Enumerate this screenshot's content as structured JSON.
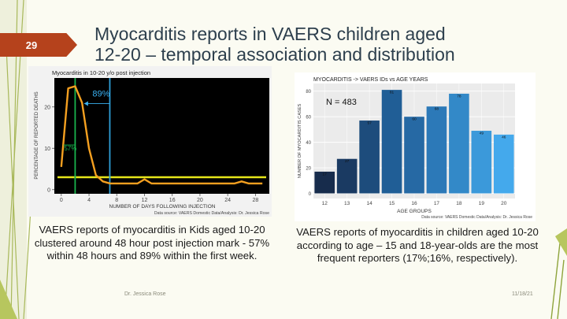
{
  "slide": {
    "number": "29",
    "title_lines": [
      "Myocarditis reports in VAERS children aged",
      "12-20 – temporal association and distribution"
    ],
    "caption_left": "VAERS reports of myocarditis in Kids aged 10-20 clustered around 48 hour post injection mark - 57% within 48 hours and 89% within the first week.",
    "caption_right": "VAERS reports of myocarditis in children aged 10-20 according to age – 15 and 18-year-olds are the most frequent reporters (17%;16%, respectively).",
    "footer_author": "Dr. Jessica Rose",
    "footer_date": "11/18/21",
    "accent_color": "#b5421c"
  },
  "chart_data": [
    {
      "type": "line",
      "title": "Myocarditis in 10-20 y/o post injection",
      "xlabel": "NUMBER OF DAYS FOLLOWING INJECTION",
      "ylabel": "PERCENTAGE OF REPORTED DEATHS",
      "source": "Data source: VAERS Domestic Data/Analysis: Dr. Jessica Rose",
      "xlim": [
        -1,
        30
      ],
      "ylim": [
        -1,
        27
      ],
      "x_ticks": [
        0,
        4,
        8,
        12,
        16,
        20,
        24,
        28
      ],
      "y_ticks": [
        0,
        10,
        20
      ],
      "grid": false,
      "background": "#000000",
      "series": [
        {
          "color": "#f5a020",
          "x": [
            0,
            1,
            2,
            3,
            4,
            5,
            6,
            7,
            8,
            9,
            10,
            11,
            12,
            13,
            14,
            15,
            16,
            17,
            18,
            19,
            20,
            21,
            22,
            23,
            24,
            25,
            26,
            27,
            28,
            29
          ],
          "y": [
            5.5,
            24.5,
            25,
            21,
            10,
            3.5,
            2,
            1.5,
            1.5,
            1.5,
            1.5,
            1.5,
            2.5,
            1.5,
            1.5,
            1.5,
            1.5,
            1.5,
            1.5,
            1.5,
            1.5,
            1.5,
            1.5,
            1.5,
            1.5,
            1.5,
            2,
            1.5,
            1.5,
            1.5
          ]
        }
      ],
      "hlines": [
        {
          "y": 3,
          "color": "#e6e61a"
        }
      ],
      "vlines": [
        {
          "x": 2,
          "color": "#19b34d"
        },
        {
          "x": 7,
          "color": "#2f9fd8"
        }
      ],
      "annotations": [
        {
          "text": "89%",
          "x": 4.5,
          "y": 22.5,
          "color": "#3ab0f0"
        },
        {
          "text": "57%",
          "x": 0.4,
          "y": 9.5,
          "color": "#19b34d"
        }
      ]
    },
    {
      "type": "bar",
      "title": "MYOCARDITIS -> VAERS IDs vs AGE YEARS",
      "xlabel": "AGE GROUPS",
      "ylabel": "NUMBER OF MYOCARDITIS CASES",
      "source": "Data source: VAERS Domestic Data/Analysis: Dr. Jessica Rose",
      "annotation": "N = 483",
      "categories": [
        "12",
        "13",
        "14",
        "15",
        "16",
        "17",
        "18",
        "19",
        "20"
      ],
      "values": [
        17,
        27,
        57,
        81,
        60,
        68,
        78,
        49,
        46
      ],
      "ylim": [
        -4,
        86
      ],
      "y_ticks": [
        0,
        20,
        40,
        60,
        80
      ],
      "grid": true,
      "bar_colors": [
        "#172c4c",
        "#1a3a62",
        "#1d4c7c",
        "#205e96",
        "#2669a4",
        "#2c79b8",
        "#3389c8",
        "#3b99da",
        "#44a9ec"
      ]
    }
  ]
}
